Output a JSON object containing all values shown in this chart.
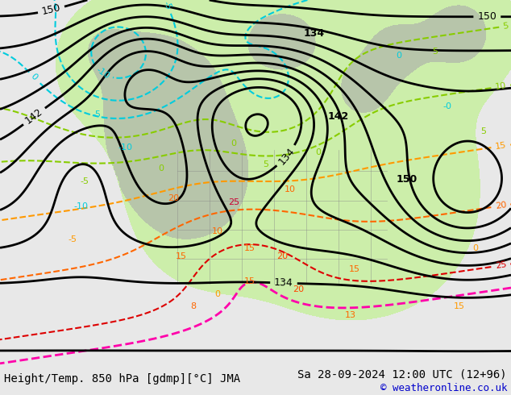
{
  "title_left": "Height/Temp. 850 hPa [gdmp][°C] JMA",
  "title_right": "Sa 28-09-2024 12:00 UTC (12+96)",
  "copyright": "© weatheronline.co.uk",
  "bg_color": "#e8e8e8",
  "map_bg": "#e0e0e0",
  "land_green_color": "#c8f0a0",
  "land_gray_color": "#aaaaaa",
  "bottom_bar_color": "#d8d8d8",
  "title_fontsize": 10,
  "copyright_fontsize": 9,
  "fig_width": 6.34,
  "fig_height": 4.9,
  "dpi": 100
}
